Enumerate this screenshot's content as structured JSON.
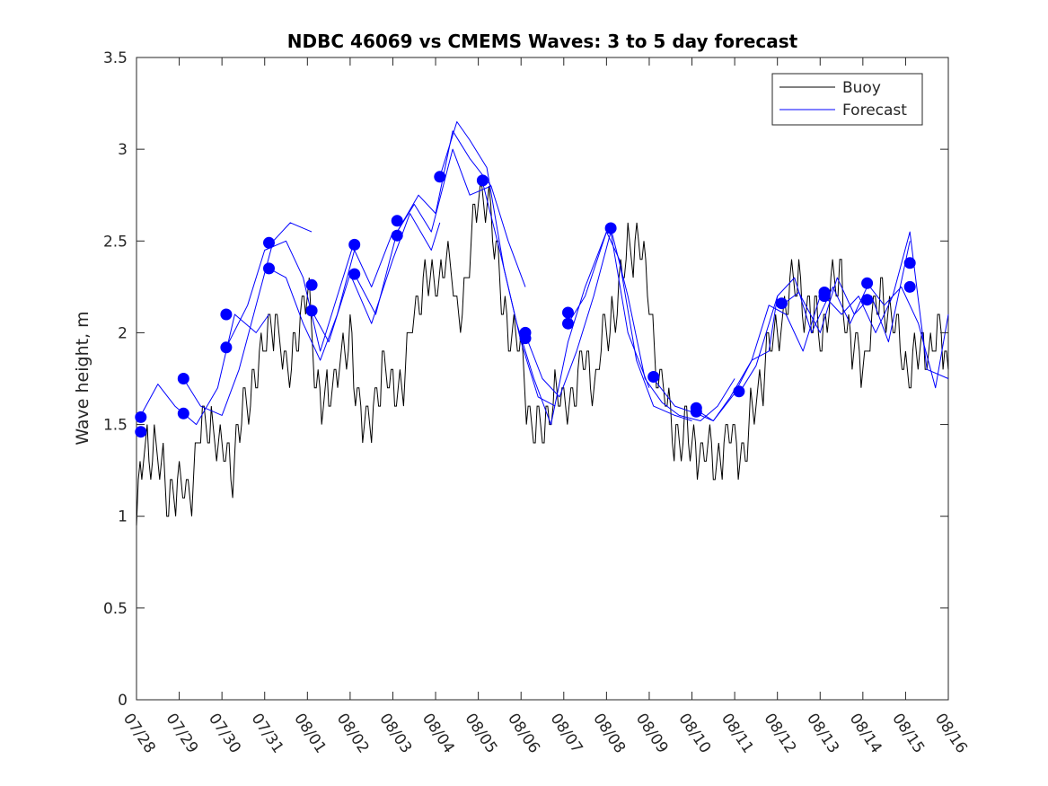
{
  "chart_data": {
    "type": "line",
    "title": "NDBC 46069 vs CMEMS Waves: 3 to 5 day forecast",
    "xlabel": "",
    "ylabel": "Wave height, m",
    "xlim": [
      0,
      19
    ],
    "ylim": [
      0,
      3.5
    ],
    "y_ticks": [
      0,
      0.5,
      1,
      1.5,
      2,
      2.5,
      3,
      3.5
    ],
    "y_tick_labels": [
      "0",
      "0.5",
      "1",
      "1.5",
      "2",
      "2.5",
      "3",
      "3.5"
    ],
    "x_tick_labels": [
      "07/28",
      "07/29",
      "07/30",
      "07/31",
      "08/01",
      "08/02",
      "08/03",
      "08/04",
      "08/05",
      "08/06",
      "08/07",
      "08/08",
      "08/09",
      "08/10",
      "08/11",
      "08/12",
      "08/13",
      "08/14",
      "08/15",
      "08/16"
    ],
    "legend": {
      "placement": "top-right",
      "entries": [
        "Buoy",
        "Forecast"
      ]
    },
    "colors": {
      "buoy": "#000000",
      "forecast": "#0000ff",
      "markers": "#0000ff",
      "axes": "#262626"
    },
    "buoy_anchors": {
      "x": [
        0,
        0.1,
        0.25,
        0.5,
        0.75,
        1.0,
        1.25,
        1.5,
        1.75,
        2.0,
        2.25,
        2.5,
        2.75,
        3.0,
        3.25,
        3.5,
        3.75,
        4.0,
        4.25,
        4.5,
        4.75,
        5.0,
        5.25,
        5.5,
        5.75,
        6.0,
        6.25,
        6.5,
        6.75,
        7.0,
        7.25,
        7.5,
        7.75,
        8.0,
        8.25,
        8.5,
        8.75,
        9.0,
        9.25,
        9.5,
        9.75,
        10.0,
        10.25,
        10.5,
        10.75,
        11.0,
        11.25,
        11.5,
        11.75,
        12.0,
        12.25,
        12.5,
        12.75,
        13.0,
        13.25,
        13.5,
        13.75,
        14.0,
        14.25,
        14.5,
        14.75,
        15.0,
        15.25,
        15.5,
        15.75,
        16.0,
        16.25,
        16.5,
        16.75,
        17.0,
        17.25,
        17.5,
        17.75,
        18.0,
        18.25,
        18.5,
        18.75,
        19.0
      ],
      "y": [
        0.95,
        1.25,
        1.45,
        1.3,
        1.15,
        1.1,
        1.15,
        1.45,
        1.55,
        1.3,
        1.3,
        1.55,
        1.75,
        1.9,
        2.15,
        1.75,
        2.0,
        2.2,
        1.7,
        1.6,
        1.9,
        1.9,
        1.6,
        1.45,
        1.85,
        1.65,
        1.8,
        2.05,
        2.35,
        2.2,
        2.5,
        2.05,
        2.35,
        2.7,
        2.75,
        2.25,
        2.0,
        1.9,
        1.5,
        1.45,
        1.65,
        1.6,
        1.7,
        1.85,
        1.75,
        2.05,
        2.15,
        2.45,
        2.5,
        2.2,
        1.75,
        1.5,
        1.45,
        1.4,
        1.35,
        1.3,
        1.4,
        1.4,
        1.35,
        1.65,
        1.85,
        2.0,
        2.2,
        2.3,
        2.1,
        2.0,
        2.2,
        2.3,
        1.9,
        1.85,
        2.1,
        2.2,
        2.05,
        1.8,
        1.85,
        1.9,
        2.0,
        1.8
      ]
    },
    "forecast_runs": [
      {
        "x": [
          0.1,
          0.5,
          0.9,
          1.4,
          1.9,
          2.3,
          2.8,
          3.1
        ],
        "y": [
          1.55,
          1.72,
          1.6,
          1.5,
          1.7,
          2.1,
          2.0,
          2.1
        ]
      },
      {
        "x": [
          1.1,
          1.5,
          2.0,
          2.4,
          2.8,
          3.2,
          3.6,
          4.1
        ],
        "y": [
          1.75,
          1.6,
          1.55,
          1.8,
          2.15,
          2.5,
          2.6,
          2.55
        ]
      },
      {
        "x": [
          2.1,
          2.6,
          3.0,
          3.5,
          3.9,
          4.3,
          4.7,
          5.1
        ],
        "y": [
          1.92,
          2.15,
          2.45,
          2.5,
          2.3,
          1.9,
          2.2,
          2.5
        ]
      },
      {
        "x": [
          3.1,
          3.5,
          3.9,
          4.3,
          4.7,
          5.1,
          5.5,
          6.0
        ],
        "y": [
          2.35,
          2.3,
          2.05,
          1.85,
          2.1,
          2.45,
          2.25,
          2.55
        ]
      },
      {
        "x": [
          4.1,
          4.5,
          5.0,
          5.5,
          6.0,
          6.4,
          6.9,
          7.1
        ],
        "y": [
          2.12,
          1.95,
          2.32,
          2.05,
          2.4,
          2.65,
          2.45,
          2.6
        ]
      },
      {
        "x": [
          5.1,
          5.6,
          6.1,
          6.5,
          6.9,
          7.4,
          7.8,
          8.3
        ],
        "y": [
          2.32,
          2.1,
          2.55,
          2.7,
          2.55,
          3.0,
          2.75,
          2.8
        ]
      },
      {
        "x": [
          6.1,
          6.6,
          7.0,
          7.4,
          7.8,
          8.3,
          8.7,
          9.1
        ],
        "y": [
          2.55,
          2.75,
          2.65,
          3.1,
          2.95,
          2.8,
          2.5,
          2.25
        ]
      },
      {
        "x": [
          7.1,
          7.5,
          7.8,
          8.2,
          8.6,
          9.0,
          9.4,
          9.8
        ],
        "y": [
          2.85,
          3.15,
          3.05,
          2.9,
          2.35,
          1.95,
          1.65,
          1.6
        ]
      },
      {
        "x": [
          8.1,
          8.5,
          8.9,
          9.3,
          9.7,
          10.1,
          10.5,
          11.0
        ],
        "y": [
          2.82,
          2.45,
          2.05,
          1.75,
          1.5,
          1.95,
          2.25,
          2.55
        ]
      },
      {
        "x": [
          9.1,
          9.5,
          9.9,
          10.3,
          10.7,
          11.1,
          11.5,
          12.0
        ],
        "y": [
          1.99,
          1.75,
          1.65,
          1.9,
          2.2,
          2.55,
          2.0,
          1.7
        ]
      },
      {
        "x": [
          10.1,
          10.5,
          11.0,
          11.3,
          11.7,
          12.1,
          12.6,
          13.0
        ],
        "y": [
          2.05,
          2.2,
          2.55,
          2.4,
          1.85,
          1.6,
          1.55,
          1.52
        ]
      },
      {
        "x": [
          11.1,
          11.5,
          11.9,
          12.3,
          12.7,
          13.2,
          13.6,
          14.0
        ],
        "y": [
          2.57,
          2.2,
          1.75,
          1.62,
          1.55,
          1.52,
          1.6,
          1.75
        ]
      },
      {
        "x": [
          12.1,
          12.6,
          13.1,
          13.5,
          13.9,
          14.4,
          14.8,
          15.0
        ],
        "y": [
          1.75,
          1.6,
          1.56,
          1.52,
          1.65,
          1.85,
          1.9,
          2.2
        ]
      },
      {
        "x": [
          13.1,
          13.5,
          14.0,
          14.4,
          14.8,
          15.2,
          15.6,
          16.0
        ],
        "y": [
          1.58,
          1.52,
          1.67,
          1.85,
          2.15,
          2.1,
          1.9,
          2.2
        ]
      },
      {
        "x": [
          14.1,
          14.5,
          15.0,
          15.4,
          15.8,
          16.3,
          16.7,
          17.1
        ],
        "y": [
          1.67,
          1.82,
          2.2,
          2.3,
          2.0,
          2.25,
          2.05,
          2.25
        ]
      },
      {
        "x": [
          15.1,
          15.5,
          16.0,
          16.4,
          16.8,
          17.2,
          17.6,
          18.1
        ],
        "y": [
          2.15,
          2.22,
          2.0,
          2.3,
          2.1,
          2.2,
          1.95,
          2.5
        ]
      },
      {
        "x": [
          16.1,
          16.5,
          16.9,
          17.3,
          17.7,
          18.1,
          18.5,
          19.0
        ],
        "y": [
          2.2,
          2.1,
          2.2,
          2.0,
          2.2,
          2.55,
          1.8,
          1.75
        ]
      },
      {
        "x": [
          17.1,
          17.5,
          17.9,
          18.3,
          18.7,
          19.0
        ],
        "y": [
          2.27,
          2.15,
          2.25,
          2.05,
          1.7,
          2.1
        ]
      }
    ],
    "forecast_start_points": {
      "x": [
        0.1,
        0.1,
        1.1,
        1.1,
        2.1,
        2.1,
        3.1,
        3.1,
        4.1,
        4.1,
        5.1,
        5.1,
        6.1,
        6.1,
        7.1,
        8.1,
        9.1,
        9.1,
        10.1,
        10.1,
        11.1,
        12.1,
        13.1,
        13.1,
        14.1,
        15.1,
        16.1,
        16.1,
        17.1,
        17.1,
        18.1,
        18.1
      ],
      "y": [
        1.54,
        1.46,
        1.75,
        1.56,
        2.1,
        1.92,
        2.49,
        2.35,
        2.26,
        2.12,
        2.48,
        2.32,
        2.61,
        2.53,
        2.85,
        2.83,
        2.0,
        1.97,
        2.11,
        2.05,
        2.57,
        1.76,
        1.59,
        1.57,
        1.68,
        2.16,
        2.22,
        2.2,
        2.27,
        2.18,
        2.38,
        2.25
      ]
    }
  }
}
